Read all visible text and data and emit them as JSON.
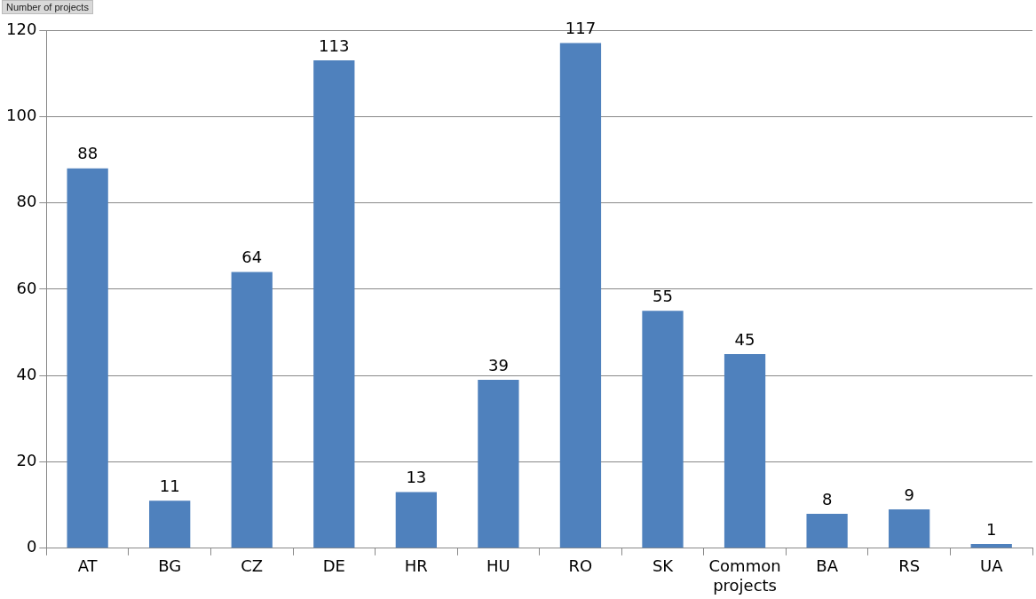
{
  "chart_data": {
    "type": "bar",
    "ylabel": "Number of projects",
    "categories": [
      "AT",
      "BG",
      "CZ",
      "DE",
      "HR",
      "HU",
      "RO",
      "SK",
      "Common projects",
      "BA",
      "RS",
      "UA"
    ],
    "values": [
      88,
      11,
      64,
      113,
      13,
      39,
      117,
      55,
      45,
      8,
      9,
      1
    ],
    "color": "#4f81bd",
    "ylim": [
      0,
      120
    ],
    "yticks": [
      0,
      20,
      40,
      60,
      80,
      100,
      120
    ],
    "grid": "y",
    "data_labels": true,
    "legend": false
  }
}
